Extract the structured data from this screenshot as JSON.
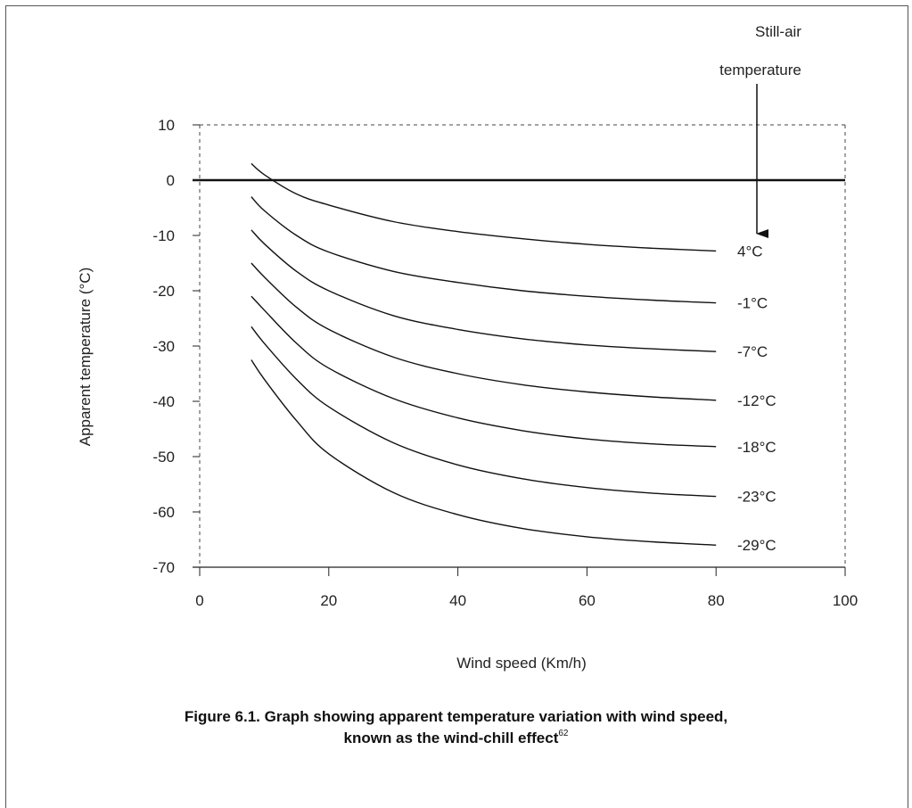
{
  "chart_data": {
    "type": "line",
    "xlabel": "Wind speed (Km/h)",
    "ylabel": "Apparent temperature (°C)",
    "xlim": [
      0,
      100
    ],
    "ylim": [
      -70,
      10
    ],
    "x_ticks": [
      "0",
      "20",
      "40",
      "60",
      "80",
      "100"
    ],
    "y_ticks": [
      "10",
      "0",
      "-10",
      "-20",
      "-30",
      "-40",
      "-50",
      "-60",
      "-70"
    ],
    "grid": false,
    "zero_line": true,
    "annotation": {
      "line1": "Still-air",
      "line2": "temperature"
    },
    "series": [
      {
        "name": "4°C",
        "x": [
          8,
          10,
          15,
          20,
          30,
          40,
          50,
          60,
          70,
          80
        ],
        "y": [
          3,
          1,
          -2.5,
          -4.5,
          -7.5,
          -9.3,
          -10.6,
          -11.6,
          -12.3,
          -12.8
        ]
      },
      {
        "name": "-1°C",
        "x": [
          8,
          10,
          15,
          20,
          30,
          40,
          50,
          60,
          70,
          80
        ],
        "y": [
          -3,
          -5.5,
          -10,
          -13,
          -16.5,
          -18.5,
          -20,
          -21,
          -21.7,
          -22.2
        ]
      },
      {
        "name": "-7°C",
        "x": [
          8,
          10,
          15,
          20,
          30,
          40,
          50,
          60,
          70,
          80
        ],
        "y": [
          -9,
          -11.5,
          -16.5,
          -20,
          -24.5,
          -27,
          -28.7,
          -29.8,
          -30.5,
          -31
        ]
      },
      {
        "name": "-12°C",
        "x": [
          8,
          10,
          15,
          20,
          30,
          40,
          50,
          60,
          70,
          80
        ],
        "y": [
          -15,
          -17.5,
          -23,
          -27,
          -32,
          -35,
          -37,
          -38.3,
          -39.2,
          -39.8
        ]
      },
      {
        "name": "-18°C",
        "x": [
          8,
          10,
          15,
          20,
          30,
          40,
          50,
          60,
          70,
          80
        ],
        "y": [
          -21,
          -23.5,
          -29.5,
          -34,
          -39.5,
          -43,
          -45.3,
          -46.8,
          -47.7,
          -48.2
        ]
      },
      {
        "name": "-23°C",
        "x": [
          8,
          10,
          15,
          20,
          30,
          40,
          50,
          60,
          70,
          80
        ],
        "y": [
          -26.5,
          -29.5,
          -36,
          -41,
          -47.5,
          -51.5,
          -54,
          -55.6,
          -56.6,
          -57.2
        ]
      },
      {
        "name": "-29°C",
        "x": [
          8,
          10,
          15,
          20,
          30,
          40,
          50,
          60,
          70,
          80
        ],
        "y": [
          -32.5,
          -36,
          -43.5,
          -49.5,
          -56.5,
          -60.5,
          -63,
          -64.5,
          -65.4,
          -66
        ]
      }
    ]
  },
  "caption": {
    "line1": "Figure 6.1. Graph showing apparent temperature variation with wind speed,",
    "line2": "known as the wind-chill effect",
    "ref": "62"
  }
}
